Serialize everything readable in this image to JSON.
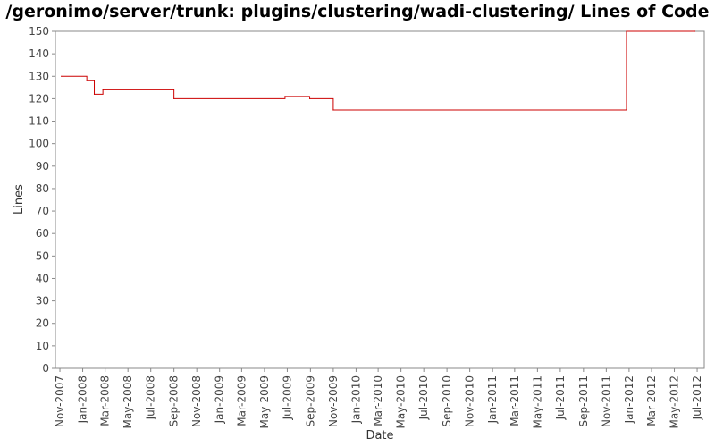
{
  "chart_data": {
    "type": "line",
    "title": "/geronimo/server/trunk: plugins/clustering/wadi-clustering/ Lines of Code",
    "xlabel": "Date",
    "ylabel": "Lines",
    "ylim": [
      0,
      150
    ],
    "yticks": [
      0,
      10,
      20,
      30,
      40,
      50,
      60,
      70,
      80,
      90,
      100,
      110,
      120,
      130,
      140,
      150
    ],
    "xlim": [
      "2007-10-20",
      "2012-07-20"
    ],
    "xtick_labels": [
      "Nov-2007",
      "Jan-2008",
      "Mar-2008",
      "May-2008",
      "Jul-2008",
      "Sep-2008",
      "Nov-2008",
      "Jan-2009",
      "Mar-2009",
      "May-2009",
      "Jul-2009",
      "Sep-2009",
      "Nov-2009",
      "Jan-2010",
      "Mar-2010",
      "May-2010",
      "Jul-2010",
      "Sep-2010",
      "Nov-2010",
      "Jan-2011",
      "Mar-2011",
      "May-2011",
      "Jul-2011",
      "Sep-2011",
      "Nov-2011",
      "Jan-2012",
      "Mar-2012",
      "May-2012",
      "Jul-2012"
    ],
    "xtick_dates": [
      "2007-11-01",
      "2008-01-01",
      "2008-03-01",
      "2008-05-01",
      "2008-07-01",
      "2008-09-01",
      "2008-11-01",
      "2009-01-01",
      "2009-03-01",
      "2009-05-01",
      "2009-07-01",
      "2009-09-01",
      "2009-11-01",
      "2010-01-01",
      "2010-03-01",
      "2010-05-01",
      "2010-07-01",
      "2010-09-01",
      "2010-11-01",
      "2011-01-01",
      "2011-03-01",
      "2011-05-01",
      "2011-07-01",
      "2011-09-01",
      "2011-11-01",
      "2012-01-01",
      "2012-03-01",
      "2012-05-01",
      "2012-07-01"
    ],
    "grid": false,
    "series": [
      {
        "color": "#cc0000",
        "step": true,
        "x": [
          "2007-11-05",
          "2008-01-12",
          "2008-02-01",
          "2008-02-24",
          "2008-09-01",
          "2009-06-25",
          "2009-08-30",
          "2009-11-01",
          "2011-12-25",
          "2012-06-25"
        ],
        "y": [
          130,
          128,
          122,
          124,
          120,
          121,
          120,
          115,
          150,
          150
        ]
      }
    ]
  }
}
